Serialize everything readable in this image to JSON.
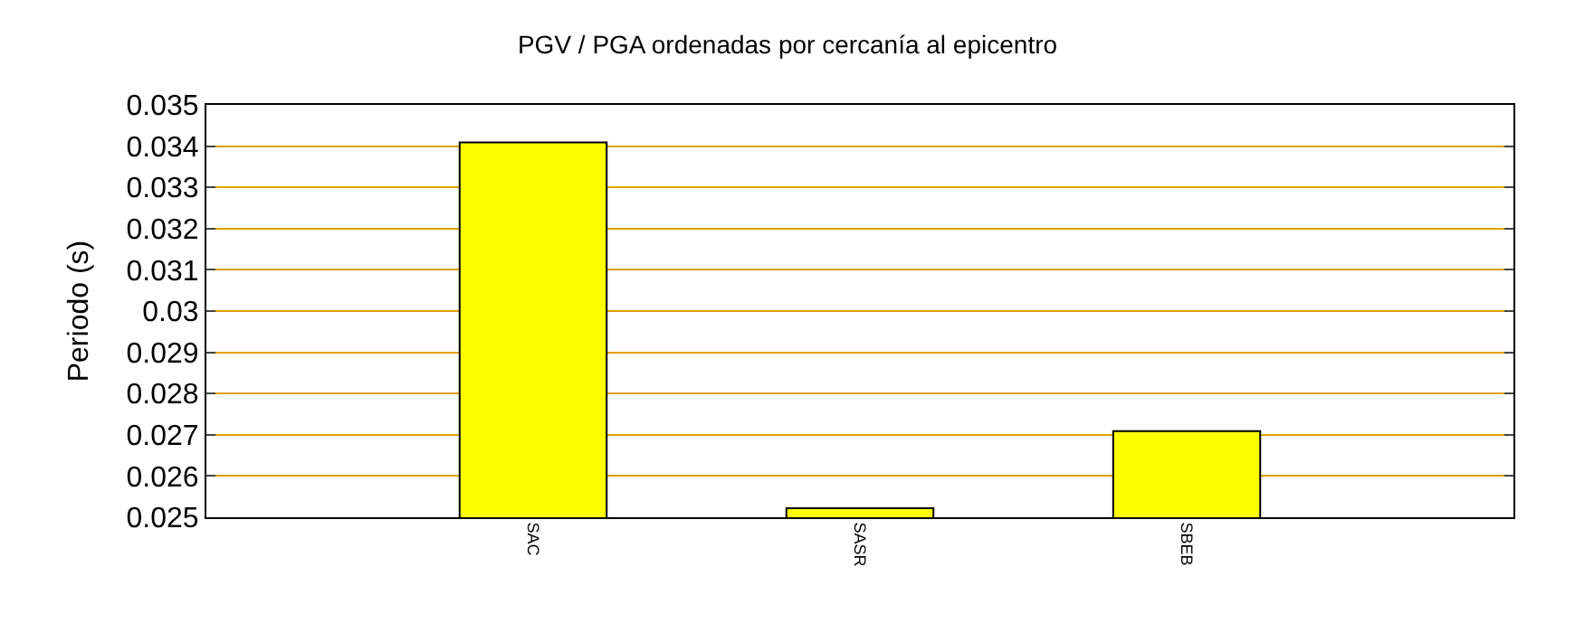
{
  "chart_data": {
    "type": "bar",
    "title": "PGV / PGA ordenadas por cercanía al epicentro",
    "ylabel": "Periodo (s)",
    "categories": [
      "SAC",
      "SASR",
      "SBEB"
    ],
    "values": [
      0.03409,
      0.02522,
      0.02709
    ],
    "color": "#ffff00",
    "ylim": [
      0.025,
      0.035
    ],
    "yticks": [
      0.025,
      0.026,
      0.027,
      0.028,
      0.029,
      0.03,
      0.031,
      0.032,
      0.033,
      0.034,
      0.035
    ],
    "grid": "y",
    "legend": false
  }
}
